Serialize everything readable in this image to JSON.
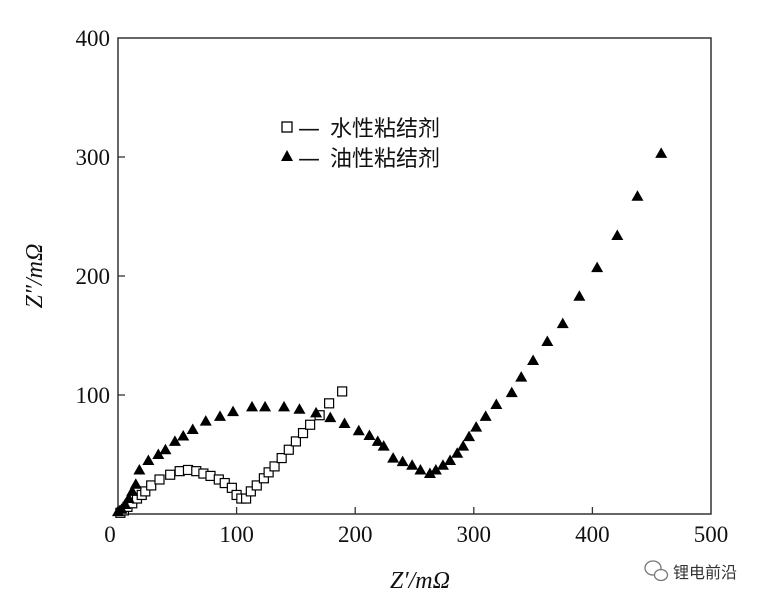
{
  "chart_data": {
    "type": "scatter",
    "xlabel": "Z′/mΩ",
    "ylabel": "Z″/mΩ",
    "xlim": [
      0,
      500
    ],
    "ylim": [
      0,
      400
    ],
    "x_ticks": [
      0,
      100,
      200,
      300,
      400,
      500
    ],
    "y_ticks": [
      0,
      100,
      200,
      300,
      400
    ],
    "grid": false,
    "legend_position": "top-center",
    "series": [
      {
        "name": "水性粘结剂",
        "marker": "open-square",
        "points": [
          [
            2,
            1
          ],
          [
            5,
            3
          ],
          [
            8,
            6
          ],
          [
            12,
            9
          ],
          [
            16,
            13
          ],
          [
            20,
            16
          ],
          [
            23,
            19
          ],
          [
            28,
            24
          ],
          [
            35,
            29
          ],
          [
            44,
            33
          ],
          [
            52,
            36
          ],
          [
            59,
            37
          ],
          [
            66,
            36
          ],
          [
            72,
            34
          ],
          [
            78,
            32
          ],
          [
            85,
            29
          ],
          [
            90,
            26
          ],
          [
            96,
            22
          ],
          [
            100,
            16
          ],
          [
            104,
            13
          ],
          [
            108,
            13
          ],
          [
            112,
            19
          ],
          [
            117,
            24
          ],
          [
            123,
            30
          ],
          [
            127,
            35
          ],
          [
            132,
            40
          ],
          [
            138,
            47
          ],
          [
            144,
            54
          ],
          [
            150,
            61
          ],
          [
            156,
            68
          ],
          [
            162,
            75
          ],
          [
            170,
            83
          ],
          [
            178,
            93
          ],
          [
            189,
            103
          ]
        ]
      },
      {
        "name": "油性粘结剂",
        "marker": "filled-triangle",
        "points": [
          [
            0,
            2
          ],
          [
            3,
            4
          ],
          [
            6,
            8
          ],
          [
            9,
            13
          ],
          [
            12,
            19
          ],
          [
            15,
            25
          ],
          [
            18,
            37
          ],
          [
            25.6,
            45
          ],
          [
            34,
            50
          ],
          [
            40,
            54
          ],
          [
            48,
            61
          ],
          [
            55,
            65.5
          ],
          [
            63,
            71
          ],
          [
            74,
            78
          ],
          [
            86,
            82
          ],
          [
            97,
            86
          ],
          [
            113,
            90
          ],
          [
            124,
            90
          ],
          [
            140,
            90
          ],
          [
            153,
            88
          ],
          [
            167,
            85
          ],
          [
            179,
            81
          ],
          [
            191,
            76
          ],
          [
            203,
            70
          ],
          [
            212,
            66
          ],
          [
            219,
            61
          ],
          [
            224,
            57
          ],
          [
            232,
            47
          ],
          [
            240,
            44
          ],
          [
            248,
            41
          ],
          [
            255,
            37
          ],
          [
            263,
            34
          ],
          [
            268,
            37
          ],
          [
            274,
            41
          ],
          [
            280,
            45
          ],
          [
            286,
            51
          ],
          [
            291,
            57
          ],
          [
            296,
            65
          ],
          [
            302,
            73
          ],
          [
            310,
            82
          ],
          [
            319,
            92
          ],
          [
            332,
            102
          ],
          [
            340,
            115
          ],
          [
            350,
            129
          ],
          [
            362,
            145
          ],
          [
            375,
            160
          ],
          [
            389,
            183
          ],
          [
            404,
            207
          ],
          [
            421,
            234
          ],
          [
            438,
            267
          ],
          [
            458,
            303
          ]
        ]
      }
    ]
  },
  "legend": {
    "dash": "—"
  },
  "watermark": {
    "text": "锂电前沿",
    "icon": "wechat-icon"
  },
  "colors": {
    "marker": "#000000",
    "axis": "#333333"
  }
}
